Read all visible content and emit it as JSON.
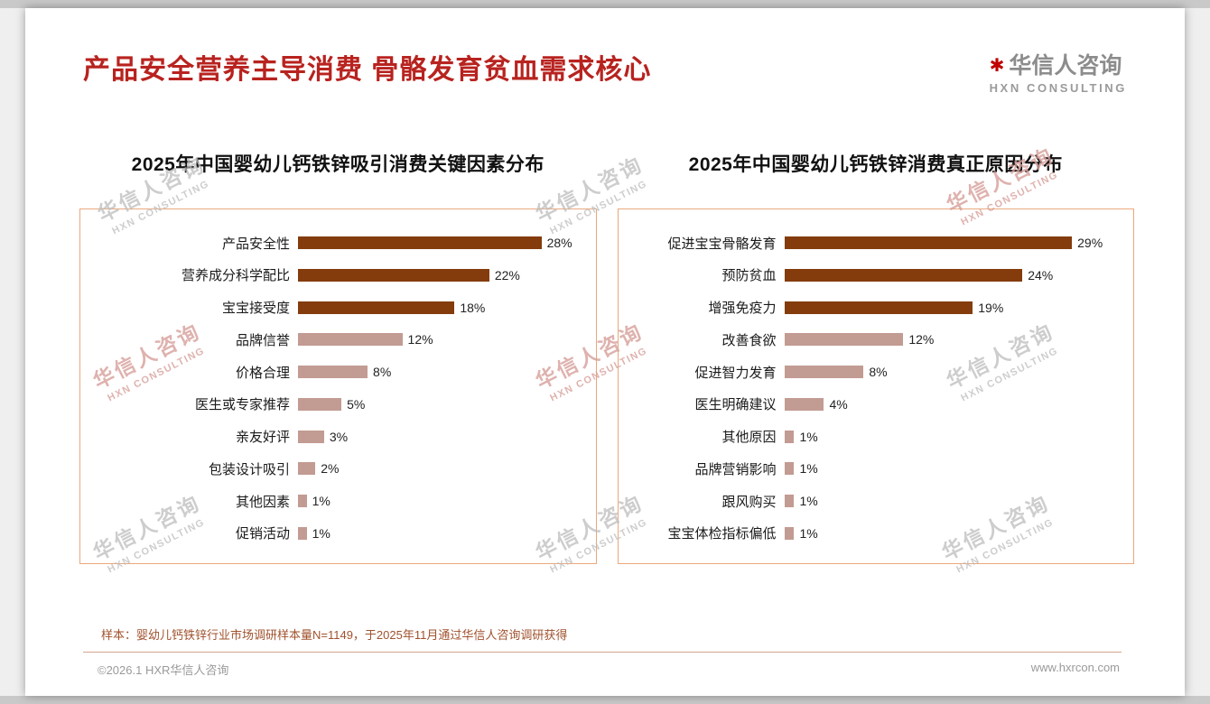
{
  "page": {
    "title": "产品安全营养主导消费 骨骼发育贫血需求核心",
    "logo": {
      "mark": "✱",
      "name": "华信人咨询",
      "subtitle": "HXN CONSULTING"
    },
    "watermark": {
      "line1": "华信人咨询",
      "line2": "HXN CONSULTING"
    },
    "footer": {
      "note": "样本：婴幼儿钙铁锌行业市场调研样本量N=1149，于2025年11月通过华信人咨询调研获得",
      "copyright": "©2026.1 HXR华信人咨询",
      "website": "www.hxrcon.com"
    },
    "colors": {
      "title": "#b8231f",
      "bar_dark": "#843c0c",
      "bar_light": "#c29b92",
      "box_border": "#eaa87c",
      "note_text": "#a0522d",
      "gray_text": "#9a9a9a",
      "watermark_gray": "#bdbdbd",
      "watermark_pink": "#d7a09b"
    }
  },
  "chart_data": [
    {
      "type": "bar",
      "orientation": "horizontal",
      "title": "2025年中国婴幼儿钙铁锌吸引消费关键因素分布",
      "categories": [
        "产品安全性",
        "营养成分科学配比",
        "宝宝接受度",
        "品牌信誉",
        "价格合理",
        "医生或专家推荐",
        "亲友好评",
        "包装设计吸引",
        "其他因素",
        "促销活动"
      ],
      "values": [
        28,
        22,
        18,
        12,
        8,
        5,
        3,
        2,
        1,
        1
      ],
      "unit": "%",
      "xlim": [
        0,
        30
      ],
      "grid": false,
      "legend": "none",
      "dark_count": 3,
      "label_width": 235
    },
    {
      "type": "bar",
      "orientation": "horizontal",
      "title": "2025年中国婴幼儿钙铁锌消费真正原因分布",
      "categories": [
        "促进宝宝骨骼发育",
        "预防贫血",
        "增强免疫力",
        "改善食欲",
        "促进智力发育",
        "医生明确建议",
        "其他原因",
        "品牌营销影响",
        "跟风购买",
        "宝宝体检指标偏低"
      ],
      "values": [
        29,
        24,
        19,
        12,
        8,
        4,
        1,
        1,
        1,
        1
      ],
      "unit": "%",
      "xlim": [
        0,
        30
      ],
      "grid": false,
      "legend": "none",
      "dark_count": 3,
      "label_width": 178
    }
  ]
}
